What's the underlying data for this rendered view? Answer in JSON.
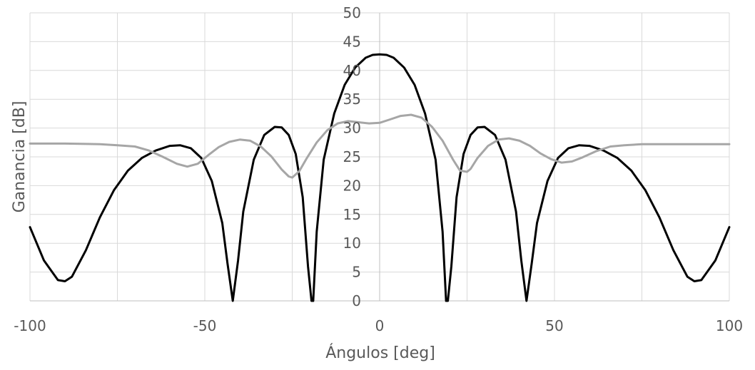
{
  "chart_data": {
    "type": "line",
    "title": "",
    "xlabel": "Ángulos [deg]",
    "ylabel": "Ganancia [dB]",
    "xlim": [
      -100,
      100
    ],
    "ylim": [
      0,
      50
    ],
    "x_ticks": [
      -100,
      -50,
      0,
      50,
      100
    ],
    "y_ticks": [
      0,
      5,
      10,
      15,
      20,
      25,
      30,
      35,
      40,
      45,
      50
    ],
    "x_tick_labels": [
      "-100",
      "-50",
      "0",
      "50",
      "100"
    ],
    "y_tick_labels": [
      "0",
      "5",
      "10",
      "15",
      "20",
      "25",
      "30",
      "35",
      "40",
      "45",
      "50"
    ],
    "grid": true,
    "legend": "none",
    "series": [
      {
        "color": "#000000",
        "x": [
          -100,
          -96,
          -92,
          -90,
          -88,
          -84,
          -80,
          -76,
          -72,
          -68,
          -64,
          -60,
          -57,
          -54,
          -51,
          -48,
          -45,
          -43.5,
          -42,
          -40.5,
          -39,
          -36,
          -33,
          -30,
          -28,
          -26,
          -24,
          -22,
          -20.5,
          -19.5,
          -19,
          -18,
          -16,
          -13,
          -10,
          -7,
          -4,
          -2,
          0,
          2,
          4,
          7,
          10,
          13,
          16,
          18,
          19,
          19.5,
          20.5,
          22,
          24,
          26,
          28,
          30,
          33,
          36,
          39,
          40.5,
          42,
          43.5,
          45,
          48,
          51,
          54,
          57,
          60,
          64,
          68,
          72,
          76,
          80,
          84,
          88,
          90,
          92,
          96,
          100
        ],
        "y": [
          12.8,
          7,
          3.6,
          3.4,
          4.2,
          8.8,
          14.5,
          19.2,
          22.6,
          24.8,
          26.1,
          26.9,
          27,
          26.5,
          24.8,
          20.8,
          13.5,
          6.5,
          0,
          7,
          15.5,
          24.5,
          28.8,
          30.2,
          30.1,
          28.8,
          25.5,
          18,
          6,
          0,
          0,
          12,
          24.5,
          32.5,
          37.5,
          40.5,
          42.2,
          42.7,
          42.8,
          42.7,
          42.2,
          40.5,
          37.5,
          32.5,
          24.5,
          12,
          0,
          0,
          6,
          18,
          25.5,
          28.8,
          30.1,
          30.2,
          28.8,
          24.5,
          15.5,
          7,
          0,
          6.5,
          13.5,
          20.8,
          24.8,
          26.5,
          27,
          26.9,
          26.1,
          24.8,
          22.6,
          19.2,
          14.5,
          8.8,
          4.2,
          3.4,
          3.6,
          7,
          12.8
        ]
      },
      {
        "color": "#a6a6a6",
        "x": [
          -100,
          -90,
          -80,
          -75,
          -70,
          -66,
          -62,
          -58,
          -55,
          -52,
          -49,
          -46,
          -43,
          -40,
          -37,
          -34,
          -31,
          -28,
          -26,
          -25,
          -23,
          -21,
          -18,
          -15,
          -12,
          -9,
          -6,
          -3,
          0,
          3,
          6,
          9,
          12,
          15,
          18,
          21,
          23,
          25,
          26,
          28,
          31,
          34,
          37,
          40,
          43,
          46,
          49,
          52,
          55,
          58,
          62,
          66,
          70,
          75,
          80,
          90,
          100
        ],
        "y": [
          27.3,
          27.3,
          27.2,
          27,
          26.8,
          26.1,
          25,
          23.8,
          23.3,
          23.8,
          25.3,
          26.7,
          27.6,
          28,
          27.8,
          26.8,
          25.1,
          22.8,
          21.6,
          21.4,
          22.5,
          24.6,
          27.5,
          29.6,
          30.8,
          31.2,
          31,
          30.8,
          30.9,
          31.5,
          32.1,
          32.3,
          31.8,
          30.2,
          27.8,
          24.5,
          22.6,
          22.4,
          22.9,
          24.8,
          26.9,
          28,
          28.2,
          27.8,
          26.9,
          25.6,
          24.6,
          24,
          24.2,
          24.9,
          26,
          26.8,
          27,
          27.2,
          27.2,
          27.2,
          27.2
        ]
      }
    ]
  }
}
